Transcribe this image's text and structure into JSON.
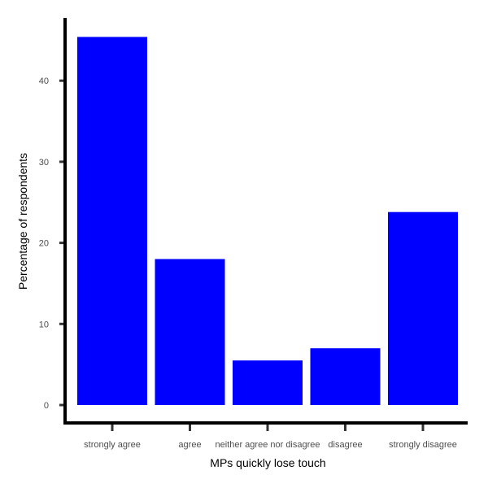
{
  "chart_data": {
    "type": "bar",
    "title": "",
    "xlabel": "MPs quickly lose touch",
    "ylabel": "Percentage of respondents",
    "categories": [
      "strongly agree",
      "agree",
      "neither agree nor disagree",
      "disagree",
      "strongly disagree"
    ],
    "values": [
      45.4,
      18.0,
      5.5,
      7.0,
      23.8
    ],
    "yticks": [
      "0",
      "10",
      "20",
      "30",
      "40"
    ],
    "ylim": [
      0,
      48
    ],
    "grid": false,
    "legend": "none",
    "bar_color": "#0000ff",
    "axis_color": "#000000",
    "tick_color": "#333333"
  }
}
